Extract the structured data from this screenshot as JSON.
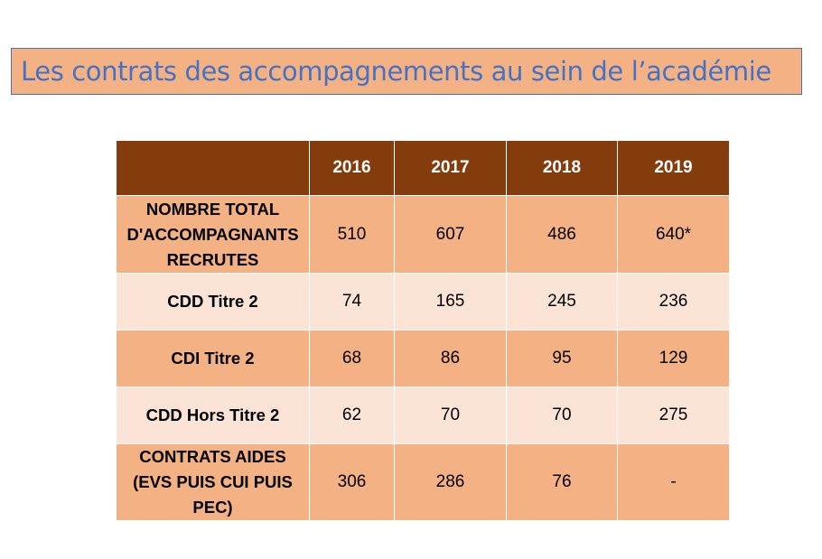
{
  "title": "Les contrats des accompagnements au sein de l’académie",
  "table": {
    "corner": "",
    "years": [
      "2016",
      "2017",
      "2018",
      "2019"
    ],
    "rows": [
      {
        "label_lines": [
          "NOMBRE TOTAL",
          "D'ACCOMPAGNANTS",
          "RECRUTES"
        ],
        "values": [
          "510",
          "607",
          "486",
          "640*"
        ]
      },
      {
        "label_lines": [
          "CDD Titre 2"
        ],
        "values": [
          "74",
          "165",
          "245",
          "236"
        ]
      },
      {
        "label_lines": [
          "CDI Titre 2"
        ],
        "values": [
          "68",
          "86",
          "95",
          "129"
        ]
      },
      {
        "label_lines": [
          "CDD Hors Titre 2"
        ],
        "values": [
          "62",
          "70",
          "70",
          "275"
        ]
      },
      {
        "label_lines": [
          "CONTRATS AIDES",
          "(EVS PUIS CUI PUIS",
          "PEC)"
        ],
        "values": [
          "306",
          "286",
          "76",
          "-"
        ]
      }
    ]
  },
  "colors": {
    "title_background": "#f4b183",
    "title_border": "#4f6fa8",
    "title_text": "#4472c4",
    "header_background": "#843c0c",
    "row_dark": "#f4b183",
    "row_light": "#fbe4d5"
  }
}
